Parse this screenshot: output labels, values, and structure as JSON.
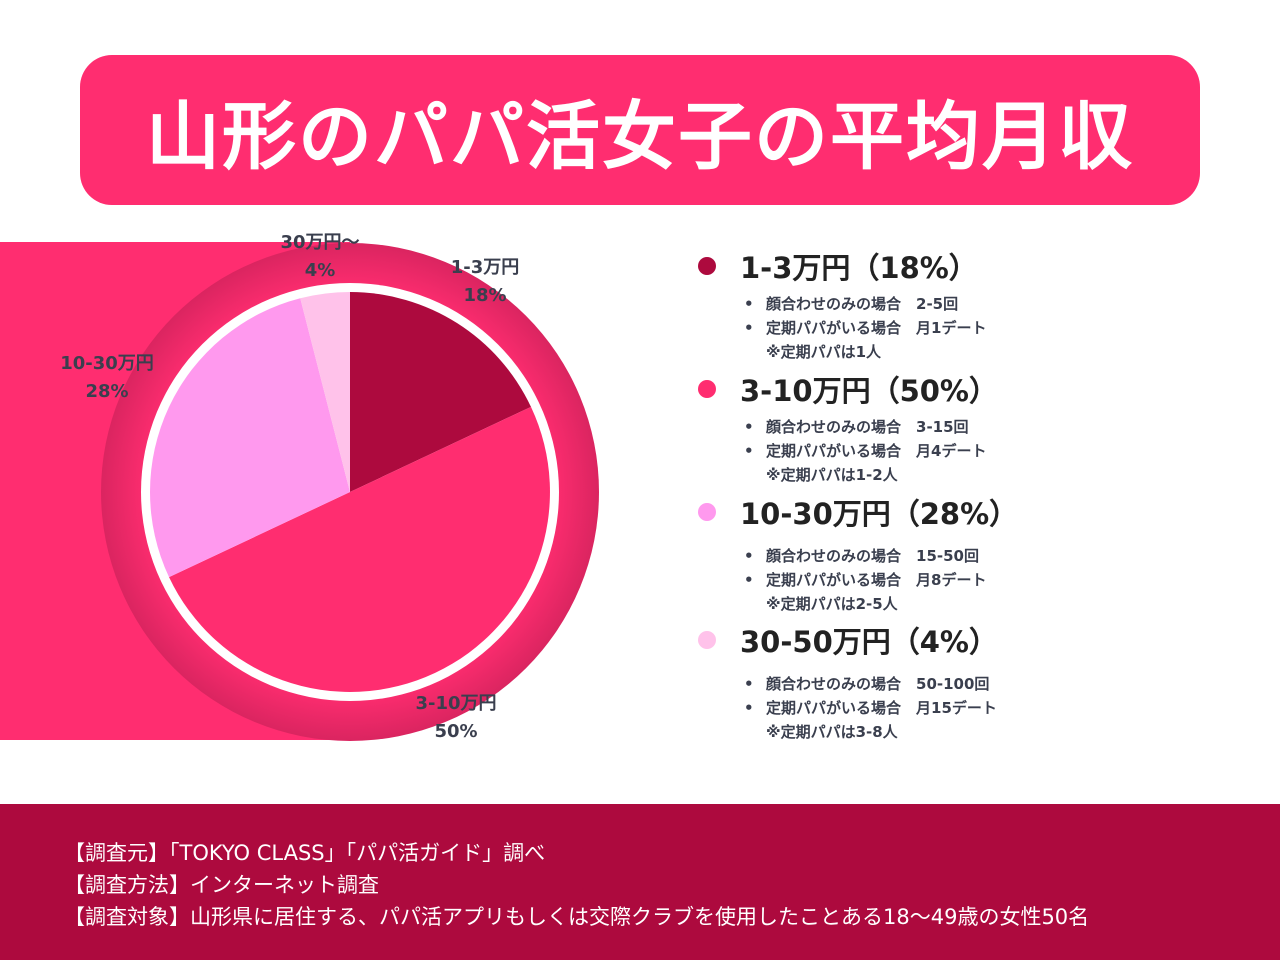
{
  "title": "山形のパパ活女子の平均月収",
  "chart_data": {
    "type": "pie",
    "start": "top",
    "direction": "clockwise",
    "slices": [
      {
        "label": "1-3万円",
        "pie_label": "1-3万円",
        "value": 18,
        "color": "#ad0a3e"
      },
      {
        "label": "3-10万円",
        "pie_label": "3-10万円",
        "value": 50,
        "color": "#ff2d70"
      },
      {
        "label": "10-30万円",
        "pie_label": "10-30万円",
        "value": 28,
        "color": "#ff99ee"
      },
      {
        "label": "30-50万円",
        "pie_label": "30万円〜",
        "value": 4,
        "color": "#ffc2ea"
      }
    ]
  },
  "pie_labels": [
    {
      "name": "1-3万円",
      "pct": "18%"
    },
    {
      "name": "3-10万円",
      "pct": "50%"
    },
    {
      "name": "10-30万円",
      "pct": "28%"
    },
    {
      "name": "30万円〜",
      "pct": "4%"
    }
  ],
  "legend": [
    {
      "title": "1-3万円（18%）",
      "color": "#ad0a3e",
      "line1": "顔合わせのみの場合　2-5回",
      "line2": "定期パパがいる場合　月1デート",
      "note": "※定期パパは1人"
    },
    {
      "title": "3-10万円（50%）",
      "color": "#ff2d70",
      "line1": "顔合わせのみの場合　3-15回",
      "line2": "定期パパがいる場合　月4デート",
      "note": "※定期パパは1-2人"
    },
    {
      "title": "10-30万円（28%）",
      "color": "#ff99ee",
      "line1": "顔合わせのみの場合　15-50回",
      "line2": "定期パパがいる場合　月8デート",
      "note": "※定期パパは2-5人"
    },
    {
      "title": "30-50万円（4%）",
      "color": "#ffc2ea",
      "line1": "顔合わせのみの場合　50-100回",
      "line2": "定期パパがいる場合　月15デート",
      "note": "※定期パパは3-8人"
    }
  ],
  "footer": {
    "source": "【調査元】「TOKYO CLASS」「パパ活ガイド」調べ",
    "method": "【調査方法】インターネット調査",
    "target": "【調査対象】山形県に居住する、パパ活アプリもしくは交際クラブを使用したことある18〜49歳の女性50名"
  }
}
